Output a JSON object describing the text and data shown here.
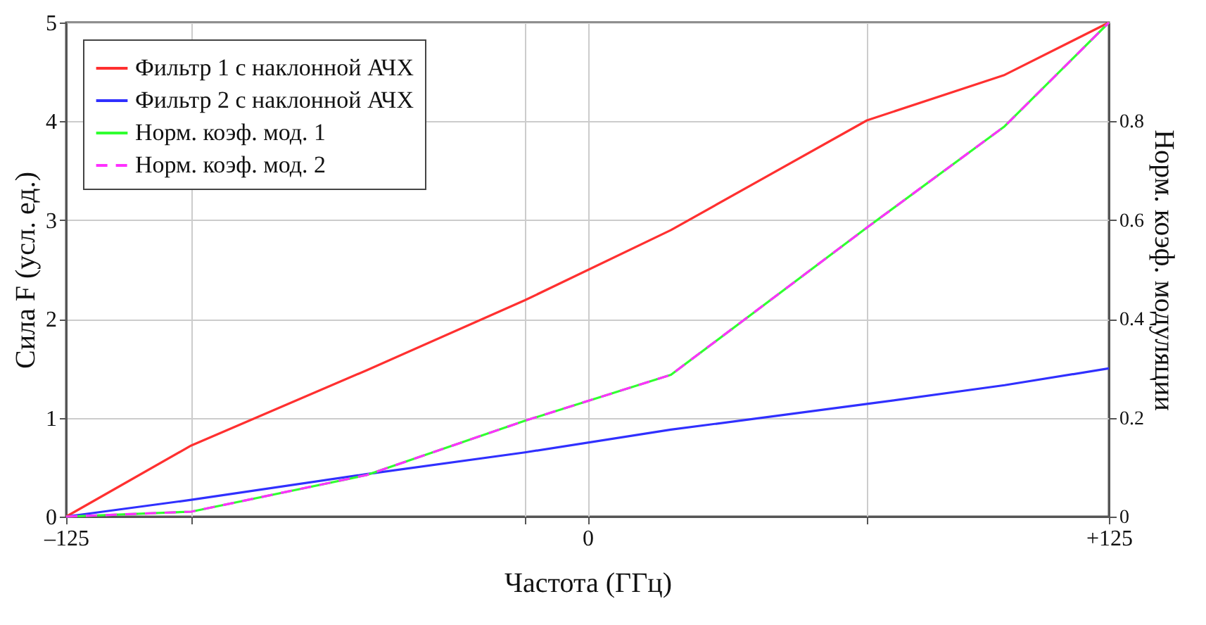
{
  "chart_data": {
    "type": "line",
    "xlabel": "Частота (ГГц)",
    "ylabel": "Сила F (усл. ед.)",
    "y2label": "Норм. коэф. модуляции",
    "x": [
      -125,
      -95,
      -53,
      -15,
      20,
      67,
      100,
      125
    ],
    "xlim": [
      -125,
      125
    ],
    "xticks": [
      {
        "value": -125,
        "label": "–125"
      },
      {
        "value": -95,
        "label": null
      },
      0,
      {
        "value": -15,
        "label": null
      },
      {
        "value": 67,
        "label": null
      },
      {
        "value": 125,
        "label": "+125"
      }
    ],
    "ylim": [
      0,
      5
    ],
    "yticks": [
      0,
      1,
      2,
      3,
      4,
      5
    ],
    "y2lim": [
      0,
      1
    ],
    "y2ticks": [
      0,
      0.2,
      0.4,
      0.6,
      0.8
    ],
    "grid": true,
    "legend": "top left",
    "series": [
      {
        "name": "Фильтр 1 с наклонной АЧХ",
        "color": "#ff3030",
        "values": [
          0,
          0.72,
          1.48,
          2.19,
          2.9,
          4.01,
          4.47,
          5
        ]
      },
      {
        "name": "Фильтр 2 с наклонной АЧХ",
        "color": "#3030ff",
        "values": [
          0,
          0.17,
          0.43,
          0.65,
          0.88,
          1.14,
          1.33,
          1.5
        ]
      },
      {
        "name": "Норм. коэф. мод. 1",
        "color": "#30ff30",
        "axis": "y2",
        "values": [
          0,
          0.01,
          0.084,
          0.194,
          0.287,
          0.585,
          0.79,
          1
        ]
      },
      {
        "name": "Норм. коэф. мод. 2",
        "color": "#ff30ff",
        "axis": "y2",
        "line_style": "dashed",
        "values": [
          0,
          0.01,
          0.084,
          0.194,
          0.287,
          0.585,
          0.79,
          1
        ]
      }
    ]
  }
}
